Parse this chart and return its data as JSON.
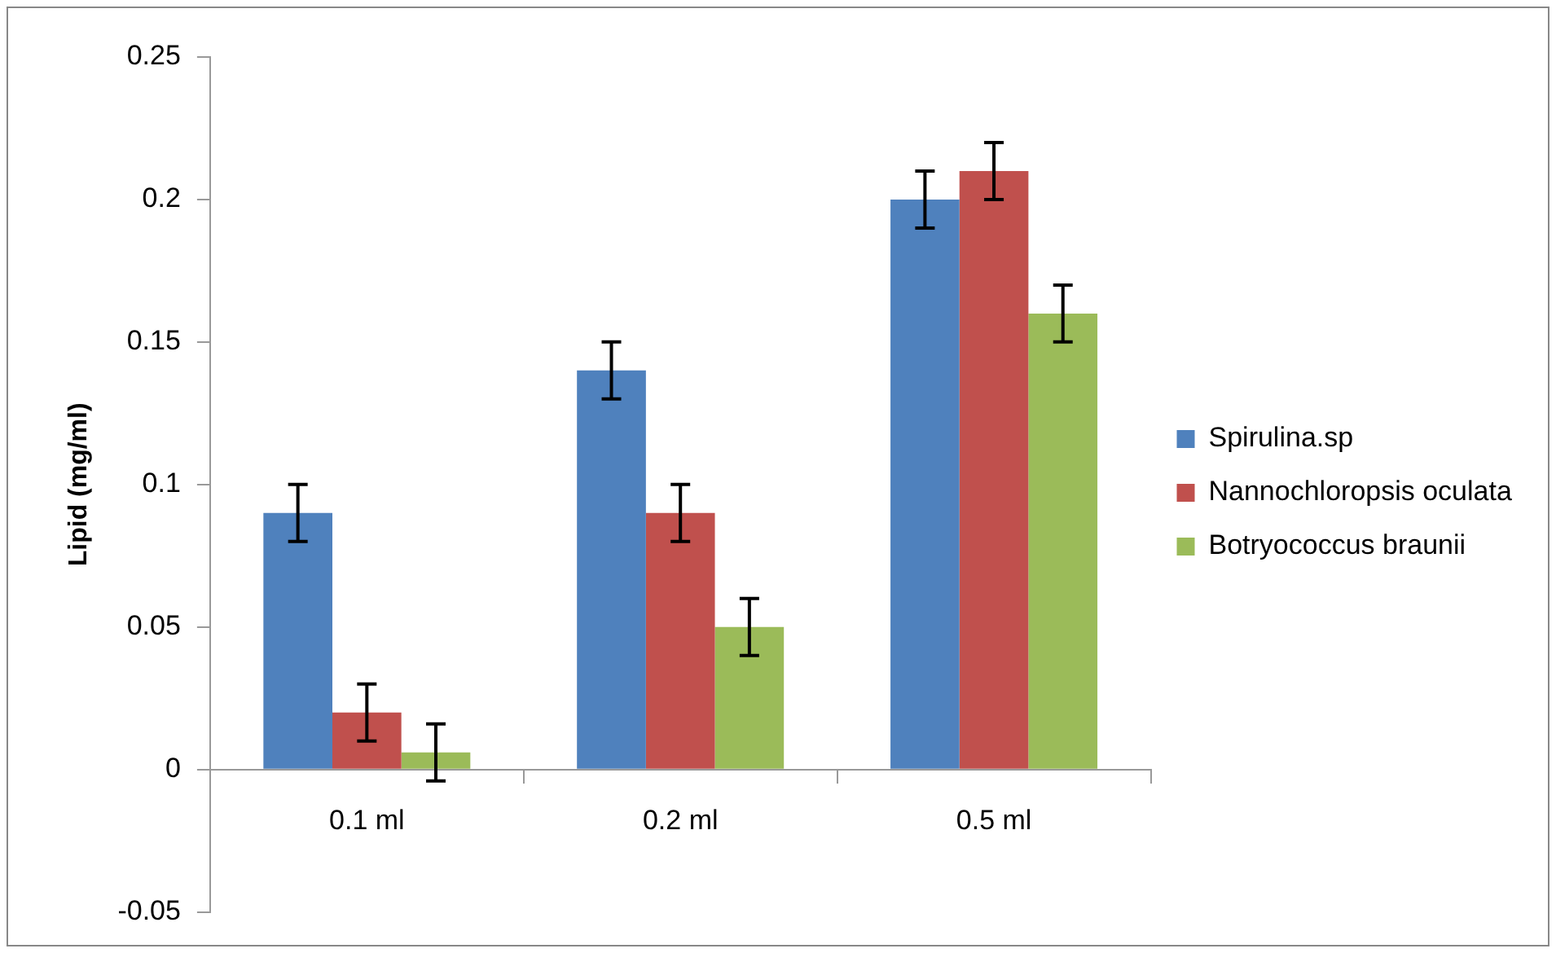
{
  "chart_data": {
    "type": "bar",
    "ylabel": "Lipid (mg/ml)",
    "categories": [
      "0.1 ml",
      "0.2 ml",
      "0.5 ml"
    ],
    "series": [
      {
        "name": "Spirulina.sp",
        "color": "#4f81bd",
        "values": [
          0.09,
          0.14,
          0.2
        ],
        "errors": [
          0.01,
          0.01,
          0.01
        ]
      },
      {
        "name": "Nannochloropsis oculata",
        "color": "#c0504d",
        "values": [
          0.02,
          0.09,
          0.21
        ],
        "errors": [
          0.01,
          0.01,
          0.01
        ]
      },
      {
        "name": "Botryococcus braunii",
        "color": "#9bbb59",
        "values": [
          0.006,
          0.05,
          0.16
        ],
        "errors": [
          0.01,
          0.01,
          0.01
        ]
      }
    ],
    "ylim": [
      -0.05,
      0.25
    ],
    "yticks": [
      -0.05,
      0,
      0.05,
      0.1,
      0.15,
      0.2,
      0.25
    ],
    "grid": false,
    "legend": "right"
  }
}
